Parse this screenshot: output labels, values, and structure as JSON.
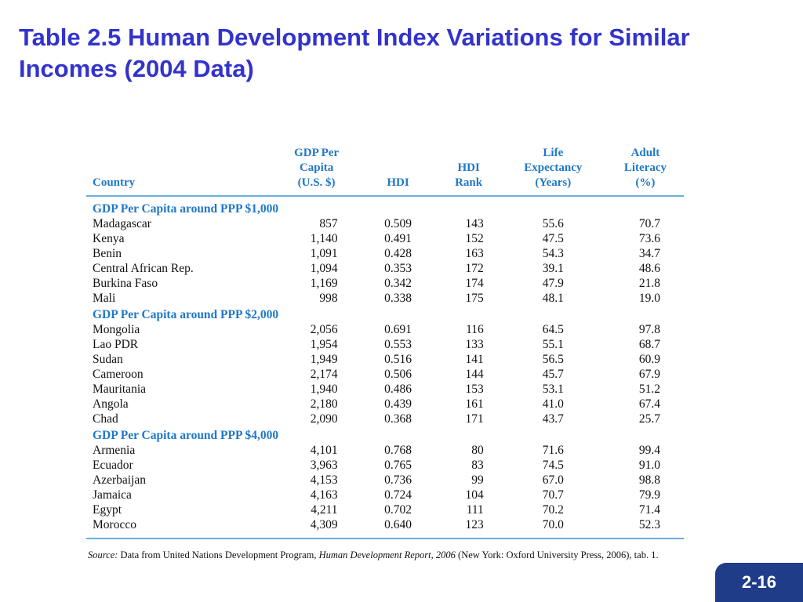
{
  "slide": {
    "title": "Table 2.5 Human Development Index Variations for Similar Incomes (2004 Data)",
    "page_number": "2-16"
  },
  "table": {
    "headers": {
      "country": "Country",
      "gdp": [
        "GDP Per",
        "Capita",
        "(U.S. $)"
      ],
      "hdi": "HDI",
      "rank": [
        "HDI",
        "Rank"
      ],
      "life": [
        "Life",
        "Expectancy",
        "(Years)"
      ],
      "literacy": [
        "Adult",
        "Literacy",
        "(%)"
      ]
    },
    "groups": [
      {
        "label": "GDP Per Capita around PPP $1,000",
        "rows": [
          [
            "Madagascar",
            "857",
            "0.509",
            "143",
            "55.6",
            "70.7"
          ],
          [
            "Kenya",
            "1,140",
            "0.491",
            "152",
            "47.5",
            "73.6"
          ],
          [
            "Benin",
            "1,091",
            "0.428",
            "163",
            "54.3",
            "34.7"
          ],
          [
            "Central African Rep.",
            "1,094",
            "0.353",
            "172",
            "39.1",
            "48.6"
          ],
          [
            "Burkina Faso",
            "1,169",
            "0.342",
            "174",
            "47.9",
            "21.8"
          ],
          [
            "Mali",
            "998",
            "0.338",
            "175",
            "48.1",
            "19.0"
          ]
        ]
      },
      {
        "label": "GDP Per Capita around PPP $2,000",
        "rows": [
          [
            "Mongolia",
            "2,056",
            "0.691",
            "116",
            "64.5",
            "97.8"
          ],
          [
            "Lao PDR",
            "1,954",
            "0.553",
            "133",
            "55.1",
            "68.7"
          ],
          [
            "Sudan",
            "1,949",
            "0.516",
            "141",
            "56.5",
            "60.9"
          ],
          [
            "Cameroon",
            "2,174",
            "0.506",
            "144",
            "45.7",
            "67.9"
          ],
          [
            "Mauritania",
            "1,940",
            "0.486",
            "153",
            "53.1",
            "51.2"
          ],
          [
            "Angola",
            "2,180",
            "0.439",
            "161",
            "41.0",
            "67.4"
          ],
          [
            "Chad",
            "2,090",
            "0.368",
            "171",
            "43.7",
            "25.7"
          ]
        ]
      },
      {
        "label": "GDP Per Capita around PPP $4,000",
        "rows": [
          [
            "Armenia",
            "4,101",
            "0.768",
            "80",
            "71.6",
            "99.4"
          ],
          [
            "Ecuador",
            "3,963",
            "0.765",
            "83",
            "74.5",
            "91.0"
          ],
          [
            "Azerbaijan",
            "4,153",
            "0.736",
            "99",
            "67.0",
            "98.8"
          ],
          [
            "Jamaica",
            "4,163",
            "0.724",
            "104",
            "70.7",
            "79.9"
          ],
          [
            "Egypt",
            "4,211",
            "0.702",
            "111",
            "70.2",
            "71.4"
          ],
          [
            "Morocco",
            "4,309",
            "0.640",
            "123",
            "70.0",
            "52.3"
          ]
        ]
      }
    ]
  },
  "source": {
    "label": "Source:",
    "text_before": " Data from United Nations Development Program, ",
    "report_title": "Human Development Report, 2006",
    "text_after": " (New York: Oxford University Press, 2006), tab. 1."
  }
}
